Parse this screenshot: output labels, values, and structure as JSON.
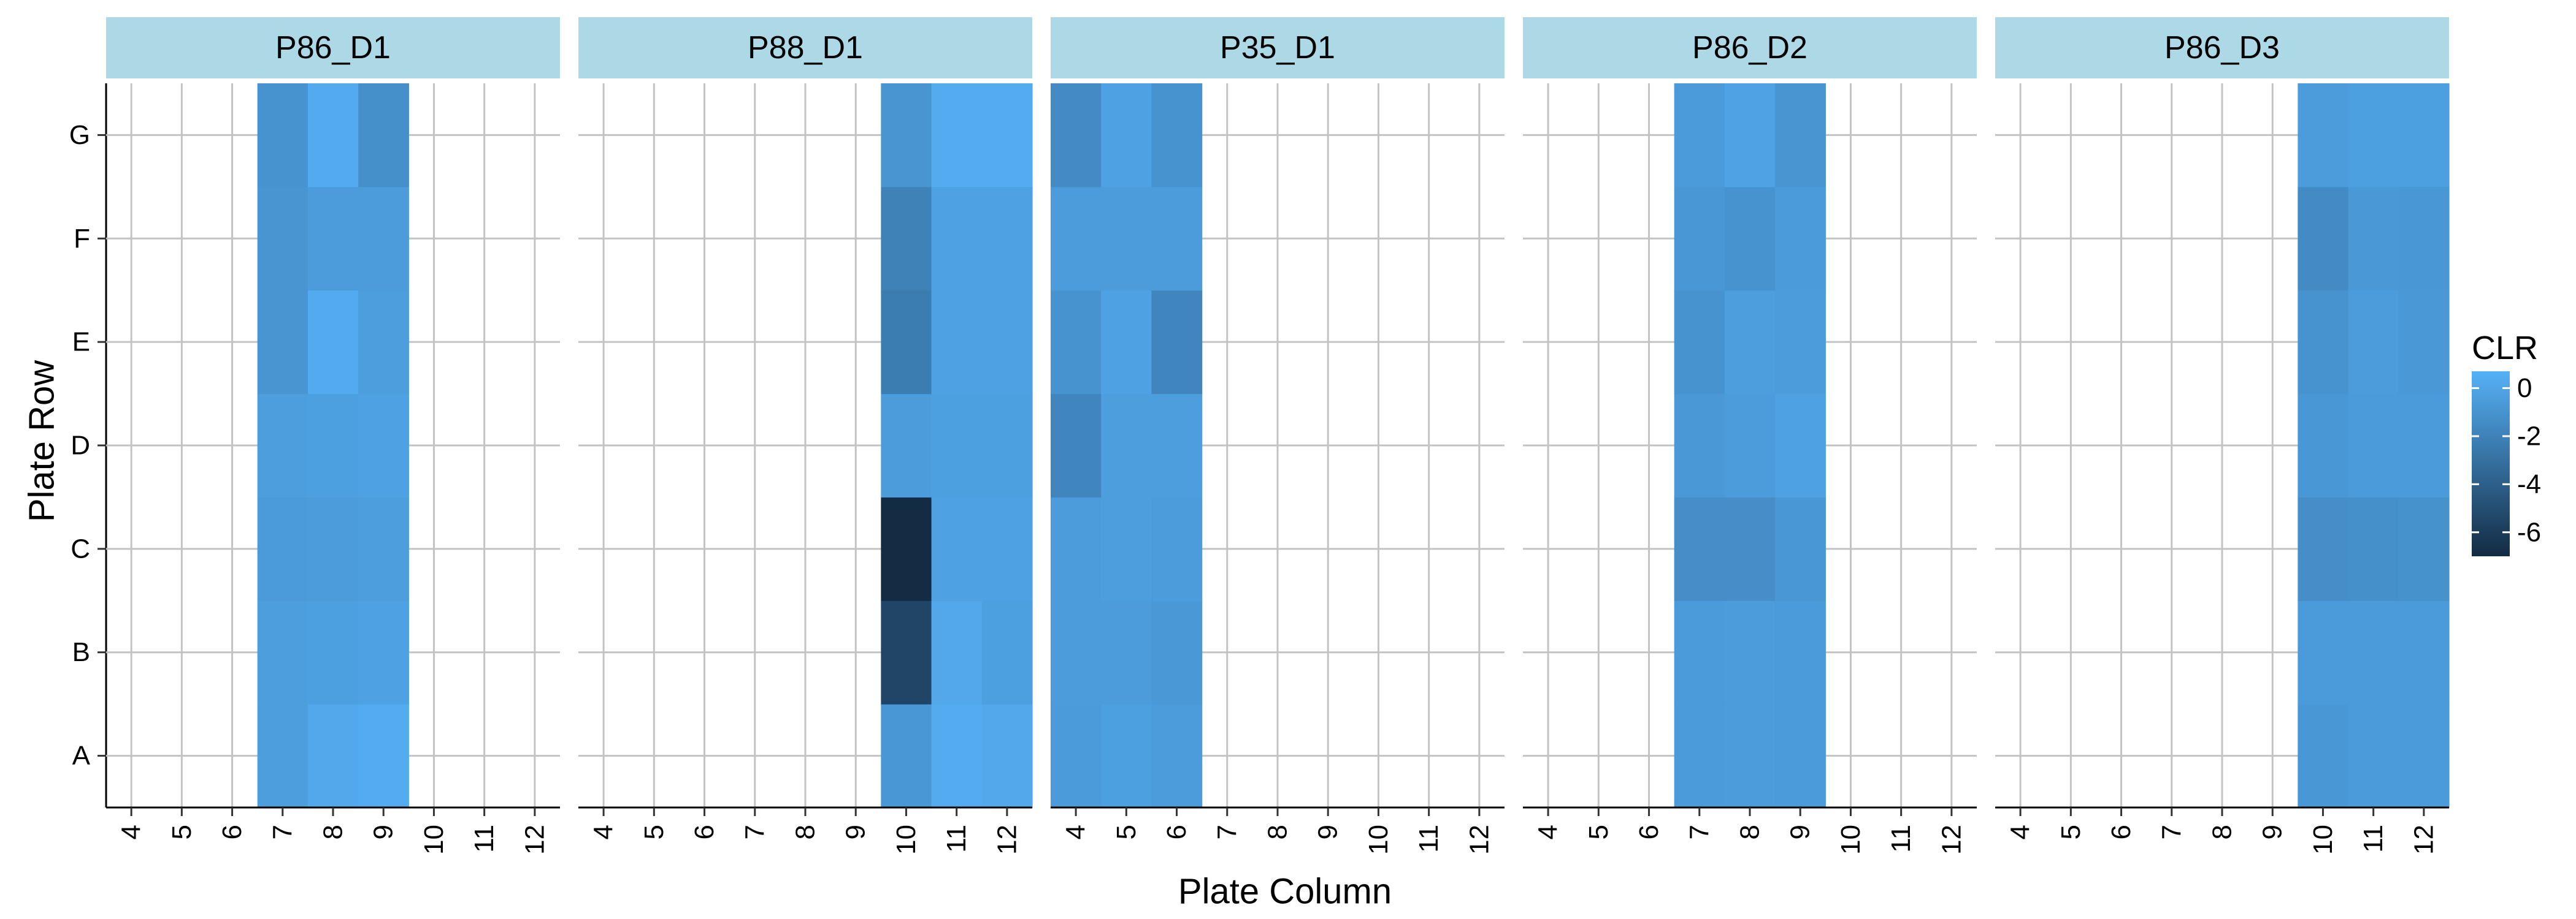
{
  "chart_data": {
    "type": "heatmap",
    "xlabel": "Plate Column",
    "ylabel": "Plate Row",
    "x_ticks": [
      "4",
      "5",
      "6",
      "7",
      "8",
      "9",
      "10",
      "11",
      "12"
    ],
    "x_range": [
      3.5,
      12.5
    ],
    "rows": [
      "A",
      "B",
      "C",
      "D",
      "E",
      "F",
      "G"
    ],
    "grid": true,
    "legend": {
      "title": "CLR",
      "position": "right",
      "min": -7,
      "max": 0.7,
      "ticks": [
        0,
        -2,
        -4,
        -6
      ],
      "color_low": "#132B43",
      "color_high": "#56B1F7"
    },
    "panels": [
      {
        "title": "P86_D1",
        "columns": [
          7,
          8,
          9
        ],
        "values": [
          [
            -0.4,
            0.2,
            0.4
          ],
          [
            -0.4,
            -0.3,
            -0.2
          ],
          [
            -0.6,
            -0.5,
            -0.4
          ],
          [
            -0.4,
            -0.3,
            -0.2
          ],
          [
            -0.9,
            0.3,
            -0.4
          ],
          [
            -0.9,
            -0.5,
            -0.5
          ],
          [
            -1.0,
            0.3,
            -1.2
          ]
        ]
      },
      {
        "title": "P88_D1",
        "columns": [
          10,
          11,
          12
        ],
        "values": [
          [
            -0.8,
            0.4,
            0.2
          ],
          [
            -5.5,
            0.2,
            -0.3
          ],
          [
            -7.0,
            -0.2,
            -0.2
          ],
          [
            -0.5,
            -0.3,
            -0.3
          ],
          [
            -2.3,
            -0.2,
            -0.2
          ],
          [
            -2.0,
            -0.2,
            -0.2
          ],
          [
            -0.9,
            0.4,
            0.4
          ]
        ]
      },
      {
        "title": "P35_D1",
        "columns": [
          4,
          5,
          6
        ],
        "values": [
          [
            -0.6,
            -0.3,
            -0.5
          ],
          [
            -0.5,
            -0.5,
            -0.7
          ],
          [
            -0.5,
            -0.4,
            -0.5
          ],
          [
            -1.8,
            -0.4,
            -0.4
          ],
          [
            -1.0,
            -0.2,
            -1.8
          ],
          [
            -0.5,
            -0.5,
            -0.5
          ],
          [
            -1.5,
            -0.2,
            -1.0
          ]
        ]
      },
      {
        "title": "P86_D2",
        "columns": [
          7,
          8,
          9
        ],
        "values": [
          [
            -0.6,
            -0.5,
            -0.6
          ],
          [
            -0.6,
            -0.5,
            -0.6
          ],
          [
            -1.3,
            -1.3,
            -0.8
          ],
          [
            -0.7,
            -0.5,
            -0.2
          ],
          [
            -1.0,
            -0.4,
            -0.5
          ],
          [
            -0.8,
            -1.0,
            -0.6
          ],
          [
            -0.6,
            -0.1,
            -0.9
          ]
        ]
      },
      {
        "title": "P86_D3",
        "columns": [
          10,
          11,
          12
        ],
        "values": [
          [
            -0.8,
            -0.6,
            -0.6
          ],
          [
            -0.6,
            -0.6,
            -0.6
          ],
          [
            -1.3,
            -1.2,
            -1.1
          ],
          [
            -0.8,
            -0.6,
            -0.6
          ],
          [
            -1.0,
            -0.5,
            -0.7
          ],
          [
            -1.5,
            -0.7,
            -0.8
          ],
          [
            -0.5,
            -0.3,
            -0.3
          ]
        ]
      }
    ]
  }
}
